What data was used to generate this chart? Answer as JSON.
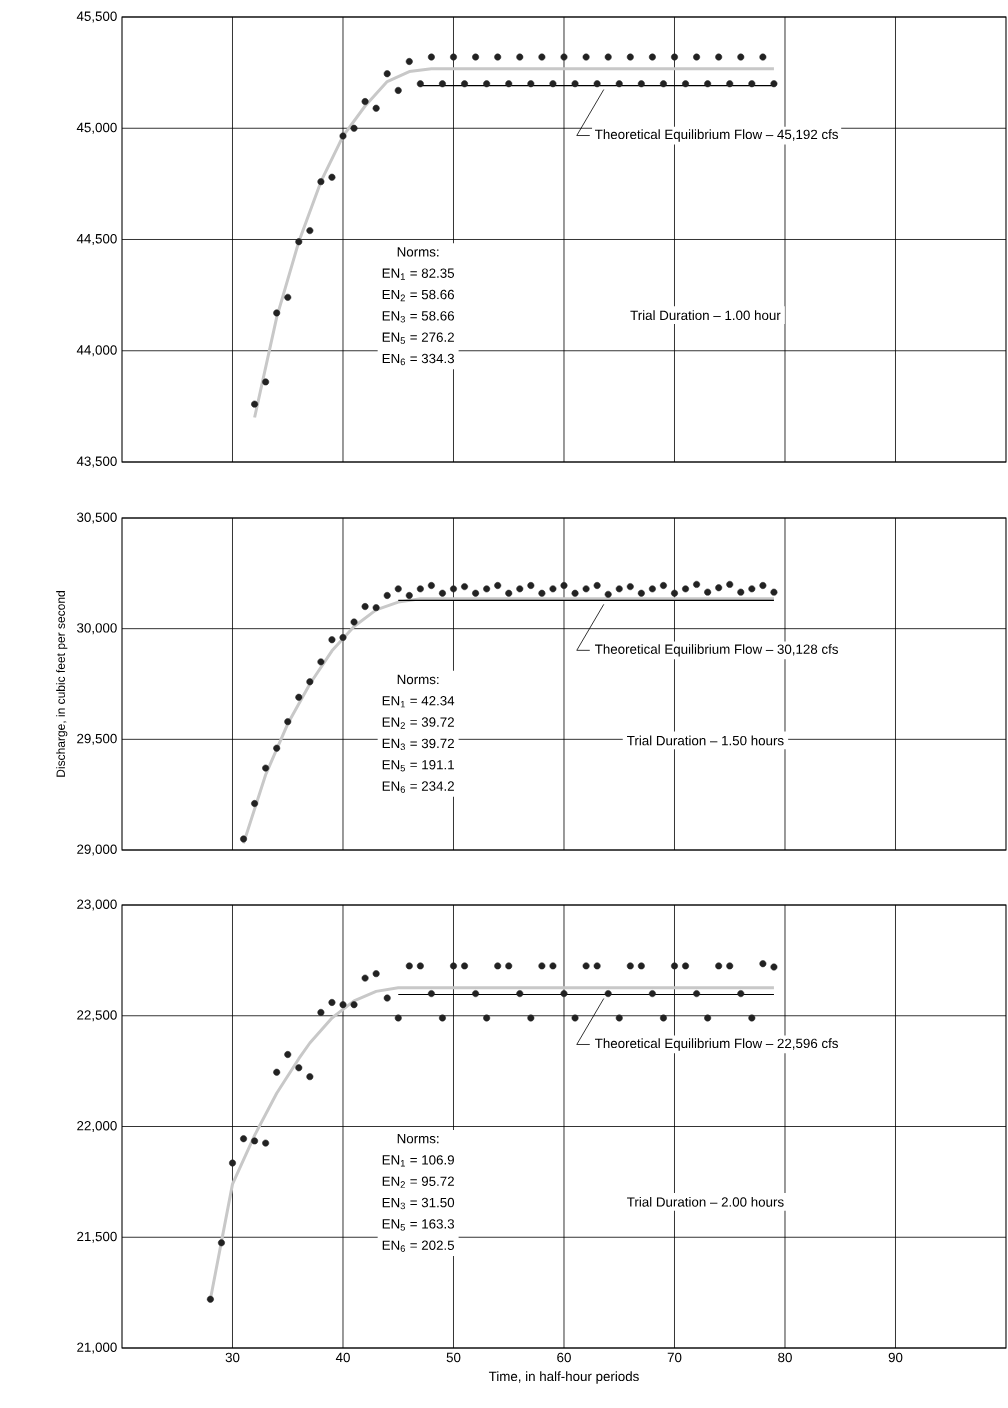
{
  "chart_data": [
    {
      "type": "scatter",
      "xlim": [
        20,
        100
      ],
      "xticks": [
        30,
        40,
        50,
        60,
        70,
        80,
        90
      ],
      "ylim": [
        43500,
        45500
      ],
      "yticks": [
        {
          "value": 43500,
          "label": "43,500"
        },
        {
          "value": 44000,
          "label": "44,000"
        },
        {
          "value": 44500,
          "label": "44,500"
        },
        {
          "value": 45000,
          "label": "45,000"
        },
        {
          "value": 45500,
          "label": "45,500"
        }
      ],
      "grid": true,
      "tick_labels": "y",
      "marker": "circle",
      "series": [
        {
          "type": "line",
          "marker": "none",
          "color": "#c8c8c8",
          "x": [
            32,
            34,
            36,
            38,
            40,
            42,
            44,
            46,
            48,
            79
          ],
          "values": [
            43700,
            44150,
            44490,
            44760,
            44965,
            45100,
            45210,
            45255,
            45267,
            45267
          ]
        },
        {
          "type": "line",
          "marker": "none",
          "color": "#000000",
          "name": "Theoretical Equilibrium Flow – 45,192 cfs",
          "x": [
            47,
            79
          ],
          "values": [
            45192,
            45192
          ]
        },
        {
          "color": "#222222",
          "x": [
            32,
            33,
            34,
            35,
            36,
            37,
            38,
            39,
            40,
            41,
            42,
            43,
            44,
            45,
            46,
            47,
            48,
            49,
            50,
            51,
            52,
            53,
            54,
            55,
            56,
            57,
            58,
            59,
            60,
            61,
            62,
            63,
            64,
            65,
            66,
            67,
            68,
            69,
            70,
            71,
            72,
            73,
            74,
            75,
            76,
            77,
            78,
            79
          ],
          "values": [
            43760,
            43860,
            44170,
            44240,
            44490,
            44540,
            44760,
            44780,
            44965,
            45000,
            45120,
            45090,
            45245,
            45170,
            45300,
            45200,
            45320,
            45200,
            45320,
            45200,
            45320,
            45200,
            45320,
            45200,
            45320,
            45200,
            45320,
            45200,
            45320,
            45200,
            45320,
            45200,
            45320,
            45200,
            45320,
            45200,
            45320,
            45200,
            45320,
            45200,
            45320,
            45200,
            45320,
            45200,
            45320,
            45200,
            45320,
            45200
          ]
        }
      ],
      "annotations": [
        "Norms:",
        "EN$_{1}$ = 82.35",
        "EN$_{2}$ = 58.66",
        "EN$_{3}$ = 58.66",
        "EN$_{5}$ = 276.2",
        "EN$_{6}$ = 334.3",
        "Trial Duration – 1.00 hour"
      ]
    },
    {
      "type": "scatter",
      "ylabel": "Discharge, in cubic feet per second",
      "xlim": [
        20,
        100
      ],
      "xticks": [
        30,
        40,
        50,
        60,
        70,
        80,
        90
      ],
      "ylim": [
        29000,
        30500
      ],
      "yticks": [
        {
          "value": 29000,
          "label": "29,000"
        },
        {
          "value": 29500,
          "label": "29,500"
        },
        {
          "value": 30000,
          "label": "30,000"
        },
        {
          "value": 30500,
          "label": "30,500"
        }
      ],
      "grid": true,
      "tick_labels": "y",
      "marker": "circle",
      "series": [
        {
          "type": "line",
          "marker": "none",
          "color": "#c8c8c8",
          "x": [
            31,
            33,
            35,
            37,
            39,
            41,
            43,
            45,
            47,
            79
          ],
          "values": [
            29030,
            29340,
            29570,
            29750,
            29900,
            30010,
            30085,
            30120,
            30135,
            30135
          ]
        },
        {
          "type": "line",
          "marker": "none",
          "color": "#000000",
          "name": "Theoretical Equilibrium Flow – 30,128 cfs",
          "x": [
            45,
            79
          ],
          "values": [
            30128,
            30128
          ]
        },
        {
          "color": "#222222",
          "x": [
            31,
            32,
            33,
            34,
            35,
            36,
            37,
            38,
            39,
            40,
            41,
            42,
            43,
            44,
            45,
            46,
            47,
            48,
            49,
            50,
            51,
            52,
            53,
            54,
            55,
            56,
            57,
            58,
            59,
            60,
            61,
            62,
            63,
            64,
            65,
            66,
            67,
            68,
            69,
            70,
            71,
            72,
            73,
            74,
            75,
            76,
            77,
            78,
            79
          ],
          "values": [
            29050,
            29210,
            29370,
            29460,
            29580,
            29690,
            29760,
            29850,
            29950,
            29960,
            30030,
            30100,
            30095,
            30150,
            30180,
            30150,
            30180,
            30195,
            30160,
            30180,
            30190,
            30160,
            30180,
            30195,
            30160,
            30180,
            30195,
            30160,
            30180,
            30195,
            30160,
            30180,
            30195,
            30155,
            30180,
            30190,
            30160,
            30180,
            30195,
            30160,
            30180,
            30200,
            30165,
            30185,
            30200,
            30165,
            30180,
            30195,
            30165
          ]
        }
      ],
      "annotations": [
        "Norms:",
        "EN$_{1}$ = 42.34",
        "EN$_{2}$ = 39.72",
        "EN$_{3}$ = 39.72",
        "EN$_{5}$ = 191.1",
        "EN$_{6}$ = 234.2",
        "Trial Duration – 1.50 hours"
      ]
    },
    {
      "type": "scatter",
      "xlabel": "Time, in half-hour periods",
      "xlim": [
        20,
        100
      ],
      "xticks": [
        30,
        40,
        50,
        60,
        70,
        80,
        90
      ],
      "ylim": [
        21000,
        23000
      ],
      "yticks": [
        {
          "value": 21000,
          "label": "21,000"
        },
        {
          "value": 21500,
          "label": "21,500"
        },
        {
          "value": 22000,
          "label": "22,000"
        },
        {
          "value": 22500,
          "label": "22,500"
        },
        {
          "value": 23000,
          "label": "23,000"
        }
      ],
      "grid": true,
      "marker": "circle",
      "series": [
        {
          "type": "line",
          "marker": "none",
          "color": "#c8c8c8",
          "x": [
            28,
            30,
            32,
            34,
            36,
            37,
            39,
            41,
            43,
            45,
            79
          ],
          "values": [
            21220,
            21740,
            21960,
            22150,
            22306,
            22377,
            22490,
            22567,
            22610,
            22626,
            22626
          ]
        },
        {
          "type": "line",
          "marker": "none",
          "color": "#000000",
          "name": "Theoretical Equilibrium Flow – 22,596 cfs",
          "x": [
            45,
            79
          ],
          "values": [
            22596,
            22596
          ]
        },
        {
          "color": "#222222",
          "x": [
            28,
            29,
            30,
            31,
            32,
            33,
            34,
            35,
            36,
            37,
            38,
            39,
            40,
            41,
            42,
            43,
            44,
            45,
            46,
            47,
            48,
            49,
            50,
            51,
            52,
            53,
            54,
            55,
            56,
            57,
            58,
            59,
            60,
            61,
            62,
            63,
            64,
            65,
            66,
            67,
            68,
            69,
            70,
            71,
            72,
            73,
            74,
            75,
            76,
            77,
            78,
            79
          ],
          "values": [
            21220,
            21475,
            21835,
            21945,
            21935,
            21925,
            22245,
            22325,
            22265,
            22225,
            22515,
            22560,
            22550,
            22550,
            22670,
            22690,
            22580,
            22490,
            22725,
            22725,
            22600,
            22490,
            22725,
            22725,
            22600,
            22490,
            22725,
            22725,
            22600,
            22490,
            22725,
            22725,
            22600,
            22490,
            22725,
            22725,
            22600,
            22490,
            22725,
            22725,
            22600,
            22490,
            22725,
            22725,
            22600,
            22490,
            22725,
            22725,
            22600,
            22490,
            22735,
            22720
          ]
        }
      ],
      "annotations": [
        "Norms:",
        "EN$_{1}$ = 106.9",
        "EN$_{2}$ = 95.72",
        "EN$_{3}$ = 31.50",
        "EN$_{5}$ = 163.3",
        "EN$_{6}$ = 202.5",
        "Trial Duration – 2.00 hours"
      ]
    }
  ]
}
